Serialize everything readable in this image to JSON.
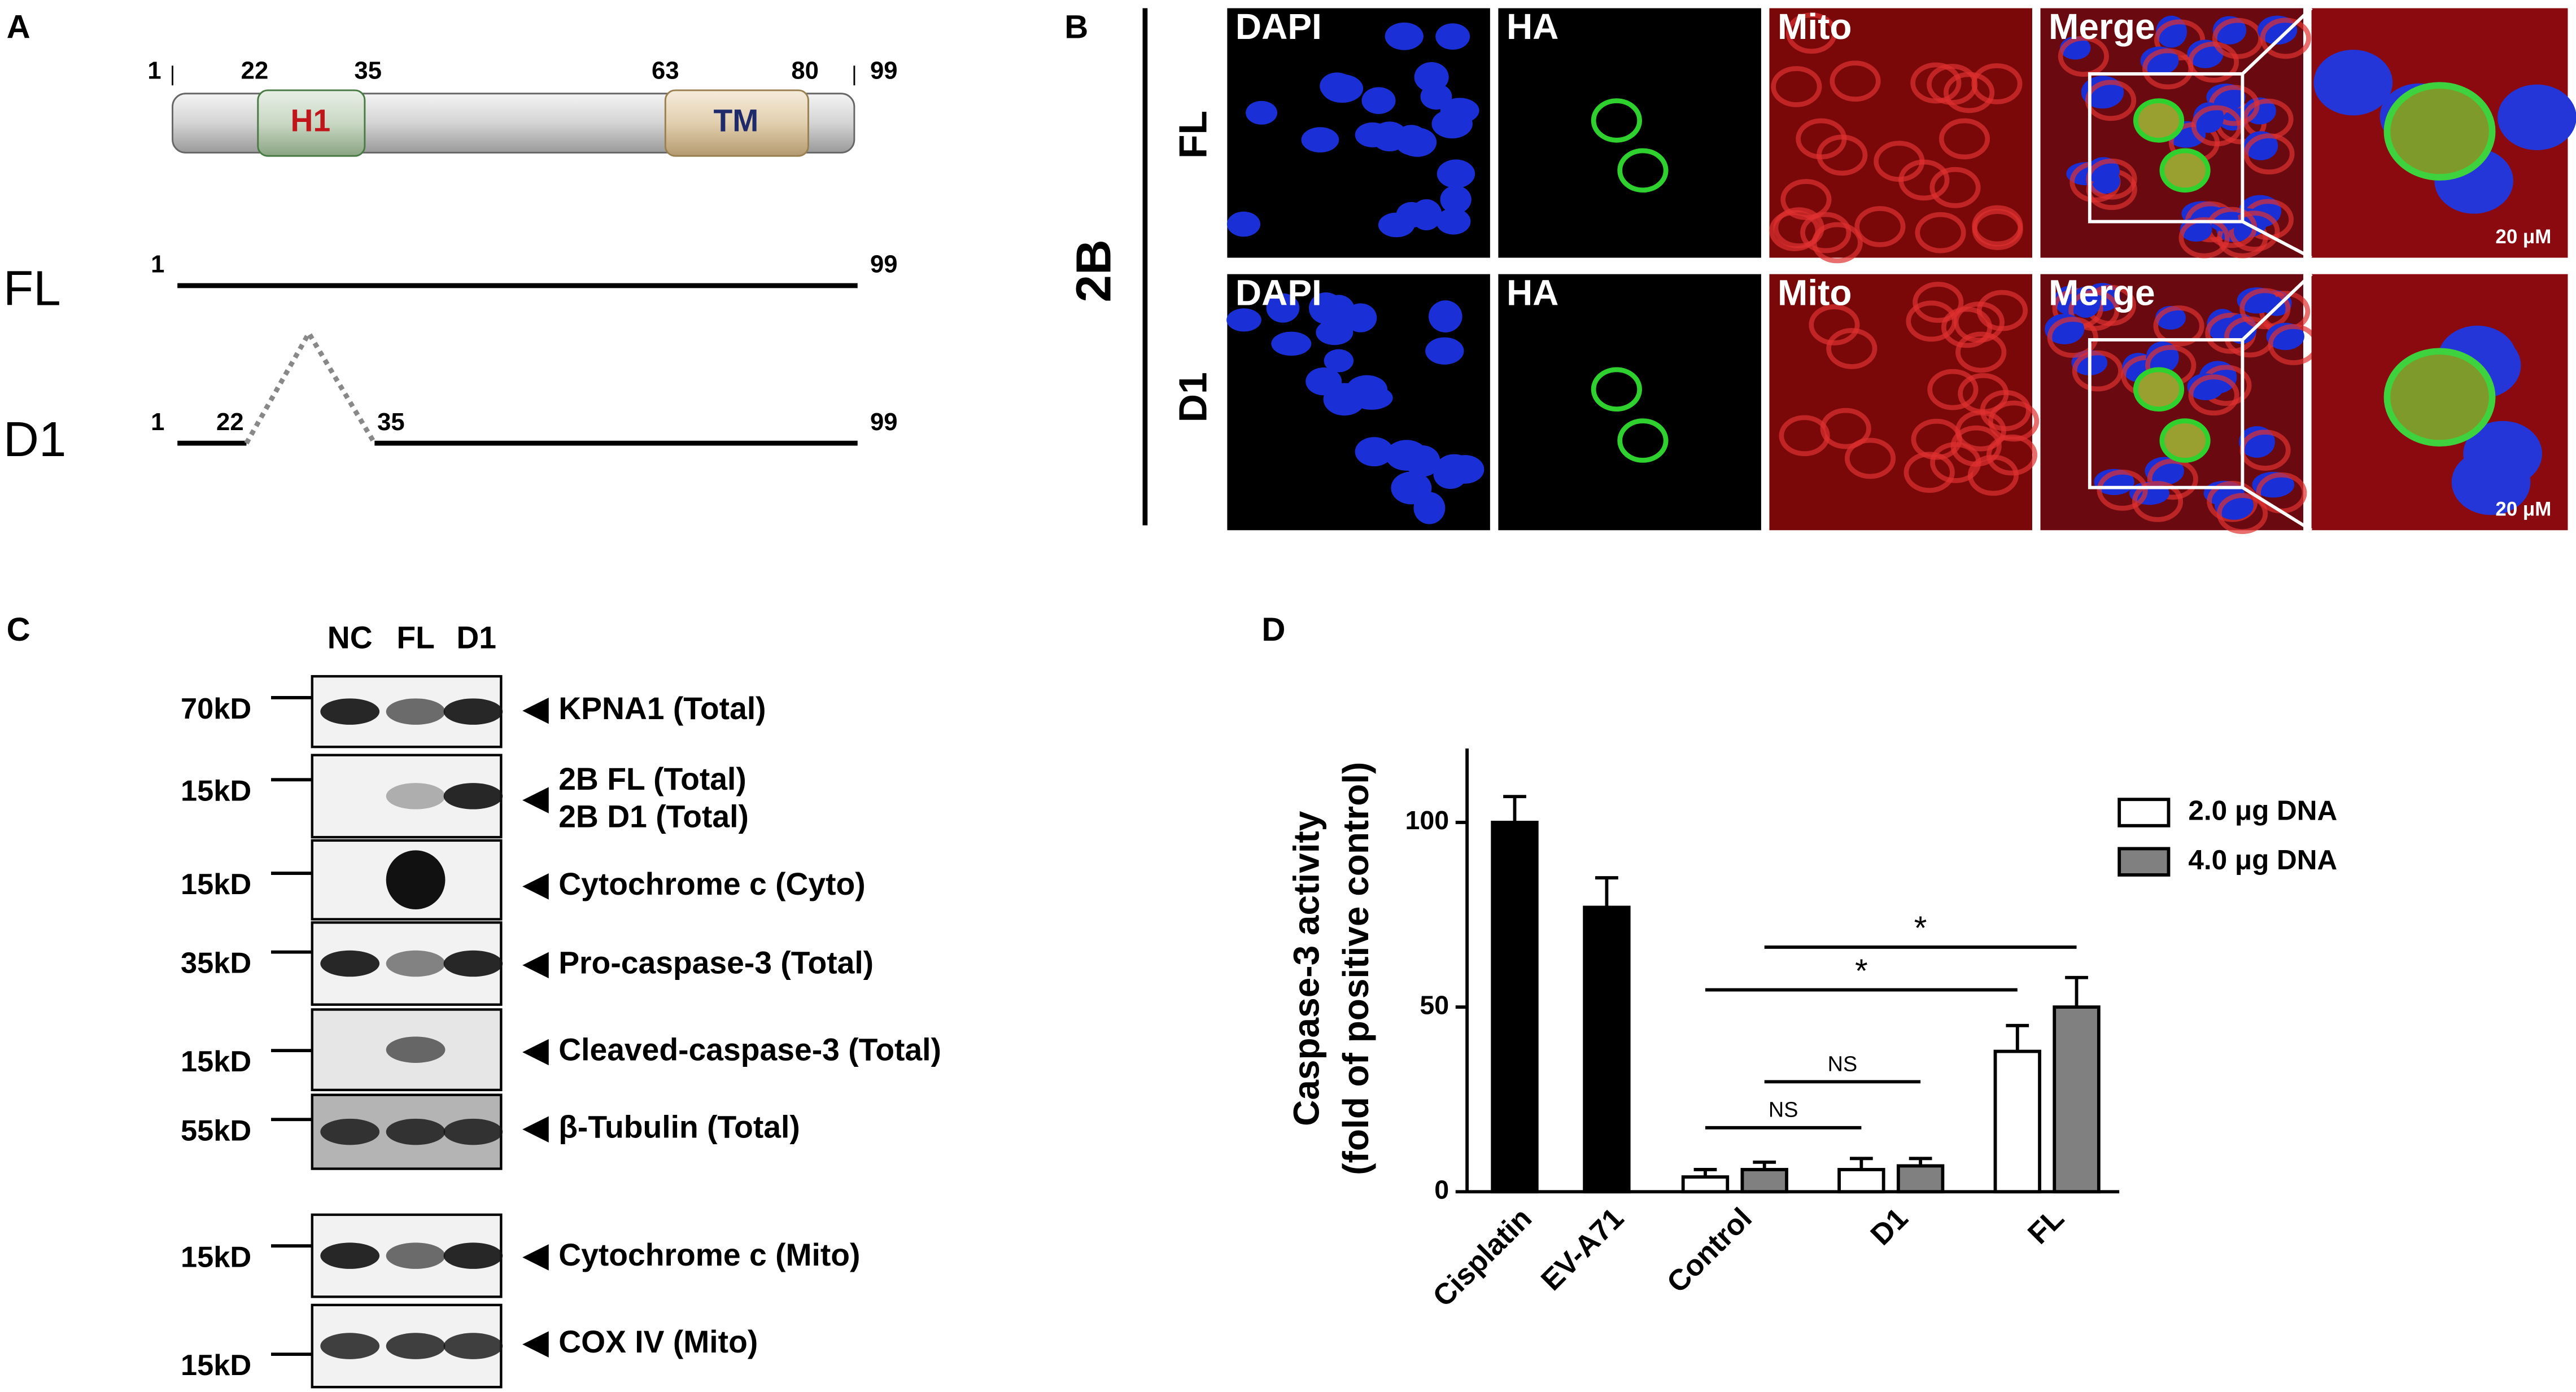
{
  "panels": {
    "A": {
      "label": "A",
      "positions": [
        "1",
        "22",
        "35",
        "63",
        "80",
        "99"
      ],
      "domains": [
        "H1",
        "TM"
      ],
      "constructs": [
        {
          "name": "FL",
          "positions": [
            "1",
            "99"
          ]
        },
        {
          "name": "D1",
          "positions": [
            "1",
            "22",
            "35",
            "99"
          ]
        }
      ]
    },
    "B": {
      "label": "B",
      "construct": "2B",
      "rows": [
        "FL",
        "D1"
      ],
      "columns": [
        "DAPI",
        "HA",
        "Mito",
        "Merge"
      ],
      "scale": "20 μM"
    },
    "C": {
      "label": "C",
      "lanes": [
        "NC",
        "FL",
        "D1"
      ],
      "blots": [
        {
          "marker": "70kD",
          "bands": [
            "KPNA1 (Total)"
          ]
        },
        {
          "marker": "15kD",
          "bands": [
            "2B FL (Total)",
            "2B D1 (Total)"
          ]
        },
        {
          "marker": "15kD",
          "bands": [
            "Cytochrome c (Cyto)"
          ]
        },
        {
          "marker": "35kD",
          "bands": [
            "Pro-caspase-3 (Total)"
          ]
        },
        {
          "marker": "15kD",
          "bands": [
            "Cleaved-caspase-3 (Total)"
          ]
        },
        {
          "marker": "55kD",
          "bands": [
            "β-Tubulin (Total)"
          ]
        },
        {
          "marker": "15kD",
          "bands": [
            "Cytochrome c (Mito)"
          ]
        },
        {
          "marker": "15kD",
          "bands": [
            "COX IV (Mito)"
          ]
        }
      ]
    },
    "D": {
      "label": "D"
    }
  },
  "chart_data": {
    "type": "bar",
    "y_label": [
      "Caspase-3 activity",
      "(fold of positive control)"
    ],
    "categories": [
      "Cisplatin",
      "EV-A71",
      "Control",
      "D1",
      "FL"
    ],
    "series": [
      {
        "color": "#000000",
        "values": [
          100,
          77,
          null,
          null,
          null
        ],
        "errors": [
          7,
          8,
          null,
          null,
          null
        ]
      },
      {
        "name": "2.0 μg DNA",
        "color": "#ffffff",
        "values": [
          null,
          null,
          4,
          6,
          38
        ],
        "errors": [
          null,
          null,
          2,
          3,
          7
        ]
      },
      {
        "name": "4.0 μg DNA",
        "color": "#808080",
        "values": [
          null,
          null,
          6,
          7,
          50
        ],
        "errors": [
          null,
          null,
          2,
          2,
          8
        ]
      }
    ],
    "ylim": [
      0,
      120
    ],
    "yticks": [
      0,
      50,
      100
    ],
    "annotations": [
      "NS",
      "NS",
      "*",
      "*"
    ]
  }
}
